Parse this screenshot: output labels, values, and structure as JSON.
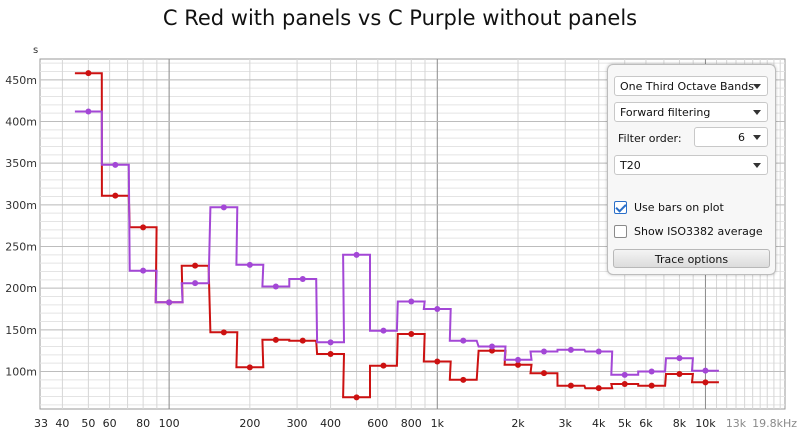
{
  "chart_data": {
    "type": "line",
    "title": "C Red with panels vs C Purple without panels",
    "y_unit": "s",
    "x_scale": "log",
    "y_scale": "linear",
    "xlim": [
      33,
      19800
    ],
    "ylim": [
      0.055,
      0.475
    ],
    "grid": true,
    "x_ticks": [
      {
        "value": 33,
        "label": "33"
      },
      {
        "value": 40,
        "label": "40"
      },
      {
        "value": 50,
        "label": "50"
      },
      {
        "value": 60,
        "label": "60"
      },
      {
        "value": 80,
        "label": "80"
      },
      {
        "value": 100,
        "label": "100"
      },
      {
        "value": 200,
        "label": "200"
      },
      {
        "value": 300,
        "label": "300"
      },
      {
        "value": 400,
        "label": "400"
      },
      {
        "value": 600,
        "label": "600"
      },
      {
        "value": 800,
        "label": "800"
      },
      {
        "value": 1000,
        "label": "1k"
      },
      {
        "value": 2000,
        "label": "2k"
      },
      {
        "value": 3000,
        "label": "3k"
      },
      {
        "value": 4000,
        "label": "4k"
      },
      {
        "value": 5000,
        "label": "5k"
      },
      {
        "value": 6000,
        "label": "6k"
      },
      {
        "value": 8000,
        "label": "8k"
      },
      {
        "value": 10000,
        "label": "10k"
      },
      {
        "value": 13000,
        "label": "13k",
        "muted": true
      },
      {
        "value": 19800,
        "label": "19.8kHz",
        "muted": true
      }
    ],
    "y_ticks": [
      {
        "value": 0.1,
        "label": "100m"
      },
      {
        "value": 0.15,
        "label": "150m"
      },
      {
        "value": 0.2,
        "label": "200m"
      },
      {
        "value": 0.25,
        "label": "250m"
      },
      {
        "value": 0.3,
        "label": "300m"
      },
      {
        "value": 0.35,
        "label": "350m"
      },
      {
        "value": 0.4,
        "label": "400m"
      },
      {
        "value": 0.45,
        "label": "450m"
      }
    ],
    "x": [
      50,
      63,
      80,
      100,
      125,
      160,
      200,
      250,
      315,
      400,
      500,
      630,
      800,
      1000,
      1250,
      1600,
      2000,
      2500,
      3150,
      4000,
      5000,
      6300,
      8000,
      10000
    ],
    "series": [
      {
        "color": "#cc1111",
        "values": [
          0.458,
          0.311,
          0.273,
          0.183,
          0.227,
          0.147,
          0.105,
          0.138,
          0.137,
          0.121,
          0.069,
          0.107,
          0.145,
          0.112,
          0.09,
          0.125,
          0.108,
          0.098,
          0.083,
          0.08,
          0.085,
          0.083,
          0.097,
          0.087
        ]
      },
      {
        "color": "#a347d6",
        "values": [
          0.412,
          0.348,
          0.221,
          0.183,
          0.206,
          0.297,
          0.228,
          0.202,
          0.211,
          0.135,
          0.24,
          0.149,
          0.184,
          0.175,
          0.137,
          0.13,
          0.114,
          0.124,
          0.126,
          0.124,
          0.096,
          0.1,
          0.116,
          0.101
        ]
      }
    ]
  },
  "panel": {
    "band_select": "One Third Octave Bands",
    "filter_select": "Forward filtering",
    "filter_order_label": "Filter order:",
    "filter_order_value": "6",
    "metric_select": "T20",
    "use_bars_label": "Use bars on plot",
    "use_bars_checked": true,
    "iso_label": "Show ISO3382 average",
    "iso_checked": false,
    "trace_button": "Trace options"
  }
}
